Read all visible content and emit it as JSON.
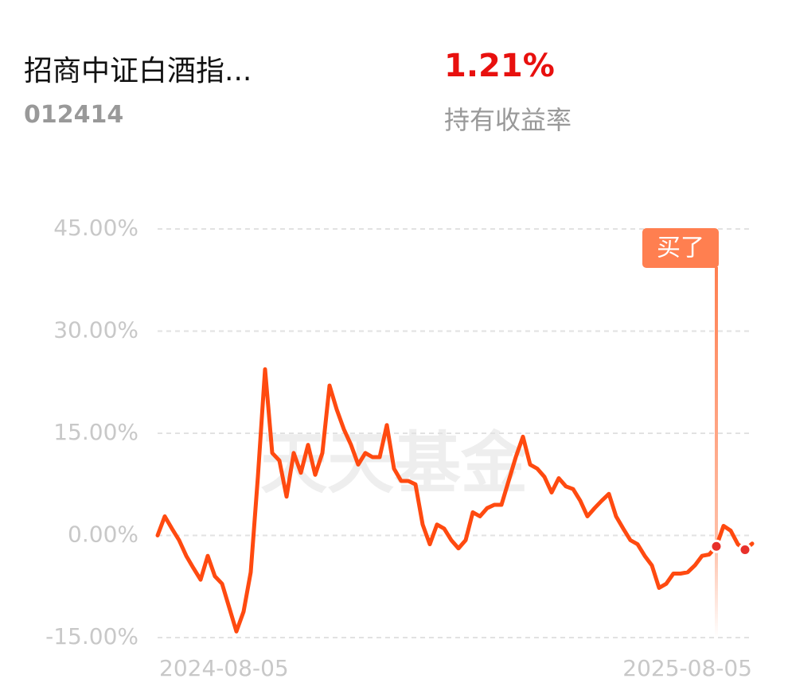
{
  "header": {
    "name": "招商中证白酒指...",
    "code": "012414",
    "return": "1.21%",
    "return_label": "持有收益率"
  },
  "chart_data": {
    "type": "line",
    "watermark": "天天基金",
    "categories": [
      "2024-08-05",
      null,
      null,
      null,
      null,
      null,
      null,
      null,
      null,
      null,
      null,
      null,
      null,
      null,
      null,
      null,
      null,
      null,
      null,
      null,
      null,
      null,
      null,
      null,
      null,
      null,
      null,
      null,
      null,
      null,
      null,
      null,
      null,
      null,
      null,
      null,
      null,
      null,
      null,
      null,
      null,
      null,
      null,
      null,
      null,
      null,
      null,
      null,
      null,
      null,
      null,
      null,
      null,
      null,
      null,
      null,
      null,
      null,
      null,
      null,
      null,
      null,
      null,
      null,
      null,
      null,
      null,
      null,
      null,
      null,
      null,
      null,
      null,
      null,
      null,
      null,
      null,
      null,
      null,
      null,
      null,
      null,
      null,
      "2025-08-05"
    ],
    "values": [
      0,
      2.8,
      1.0,
      -0.7,
      -3.0,
      -4.8,
      -6.5,
      -3.0,
      -6.0,
      -7.1,
      -10.6,
      -14.1,
      -11.2,
      -5.4,
      8.6,
      24.4,
      12.1,
      11,
      5.7,
      12.1,
      9.2,
      13.3,
      8.9,
      12.1,
      22,
      18.5,
      15.6,
      13.3,
      10.4,
      12.1,
      11.5,
      11.5,
      16.2,
      9.8,
      8,
      8,
      7.5,
      1.6,
      -1.3,
      1.6,
      1,
      -0.7,
      -1.9,
      -0.7,
      3.4,
      2.8,
      4,
      4.5,
      4.5,
      8,
      11.5,
      14.5,
      10.4,
      9.8,
      8.6,
      6.3,
      8.4,
      7.2,
      6.8,
      5.1,
      2.8,
      4,
      5.1,
      6.1,
      2.8,
      1,
      -0.7,
      -1.3,
      -3,
      -4.4,
      -7.7,
      -7.1,
      -5.6,
      -5.6,
      -5.4,
      -4.4,
      -3,
      -2.8,
      -1.6,
      1.4,
      0.7,
      -1.3,
      -2.1,
      -1.2
    ],
    "color": "#ff4a10",
    "ylim": [
      -15,
      45
    ],
    "yticks": [
      {
        "value": -15,
        "label": "-15.00%"
      },
      {
        "value": 0,
        "label": "0.00%"
      },
      {
        "value": 15,
        "label": "15.00%"
      },
      {
        "value": 30,
        "label": "30.00%"
      },
      {
        "value": 45,
        "label": "45.00%"
      }
    ],
    "grid": true,
    "annotation": {
      "text": "买了",
      "index": 78,
      "color": "#ff7f50"
    },
    "marked_points": [
      78,
      82
    ]
  }
}
